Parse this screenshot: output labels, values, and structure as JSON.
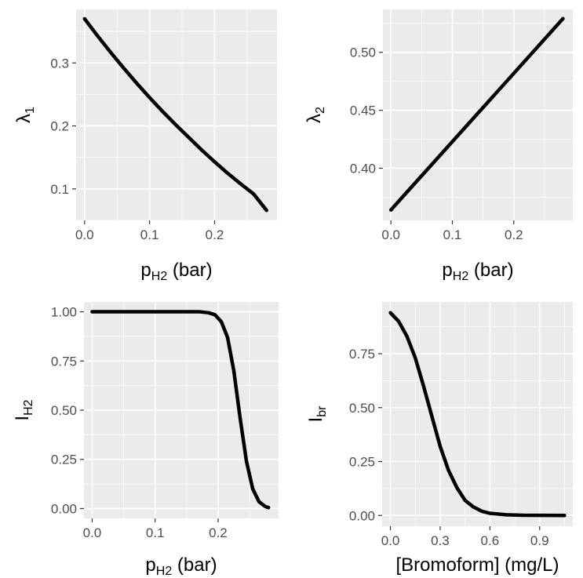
{
  "chart_data": [
    {
      "type": "line",
      "id": "lambda1",
      "xlabel": {
        "main": "p",
        "sub": "H2",
        "tail": " (bar)"
      },
      "ylabel": {
        "main": "λ",
        "sub": "1"
      },
      "xlim": [
        -0.013,
        0.296
      ],
      "ylim": [
        0.05,
        0.385
      ],
      "xticks": [
        {
          "v": 0.0,
          "label": "0.0"
        },
        {
          "v": 0.1,
          "label": "0.1"
        },
        {
          "v": 0.2,
          "label": "0.2"
        }
      ],
      "yticks": [
        {
          "v": 0.1,
          "label": "0.1"
        },
        {
          "v": 0.2,
          "label": "0.2"
        },
        {
          "v": 0.3,
          "label": "0.3"
        }
      ],
      "x": [
        0.0,
        0.02,
        0.04,
        0.06,
        0.08,
        0.1,
        0.12,
        0.14,
        0.16,
        0.18,
        0.2,
        0.22,
        0.24,
        0.26,
        0.28
      ],
      "y": [
        0.37,
        0.343,
        0.317,
        0.292,
        0.268,
        0.245,
        0.223,
        0.202,
        0.182,
        0.162,
        0.143,
        0.125,
        0.108,
        0.092,
        0.066
      ]
    },
    {
      "type": "line",
      "id": "lambda2",
      "xlabel": {
        "main": "p",
        "sub": "H2",
        "tail": " (bar)"
      },
      "ylabel": {
        "main": "λ",
        "sub": "2"
      },
      "xlim": [
        -0.013,
        0.296
      ],
      "ylim": [
        0.355,
        0.537
      ],
      "xticks": [
        {
          "v": 0.0,
          "label": "0.0"
        },
        {
          "v": 0.1,
          "label": "0.1"
        },
        {
          "v": 0.2,
          "label": "0.2"
        }
      ],
      "yticks": [
        {
          "v": 0.4,
          "label": "0.40"
        },
        {
          "v": 0.45,
          "label": "0.45"
        },
        {
          "v": 0.5,
          "label": "0.50"
        }
      ],
      "x": [
        0.0,
        0.28
      ],
      "y": [
        0.364,
        0.529
      ]
    },
    {
      "type": "line",
      "id": "IH2",
      "xlabel": {
        "main": "p",
        "sub": "H2",
        "tail": " (bar)"
      },
      "ylabel": {
        "main": "I",
        "sub": "H2"
      },
      "xlim": [
        -0.013,
        0.296
      ],
      "ylim": [
        -0.05,
        1.05
      ],
      "xticks": [
        {
          "v": 0.0,
          "label": "0.0"
        },
        {
          "v": 0.1,
          "label": "0.1"
        },
        {
          "v": 0.2,
          "label": "0.2"
        }
      ],
      "yticks": [
        {
          "v": 0.0,
          "label": "0.00"
        },
        {
          "v": 0.25,
          "label": "0.25"
        },
        {
          "v": 0.5,
          "label": "0.50"
        },
        {
          "v": 0.75,
          "label": "0.75"
        },
        {
          "v": 1.0,
          "label": "1.00"
        }
      ],
      "x": [
        0.0,
        0.1,
        0.17,
        0.185,
        0.195,
        0.205,
        0.215,
        0.225,
        0.235,
        0.245,
        0.255,
        0.265,
        0.275,
        0.28
      ],
      "y": [
        1.0,
        1.0,
        1.0,
        0.995,
        0.985,
        0.95,
        0.87,
        0.7,
        0.46,
        0.24,
        0.1,
        0.035,
        0.01,
        0.005
      ]
    },
    {
      "type": "line",
      "id": "Ibr",
      "xlabel": {
        "main": "[Bromoform] (mg/L)",
        "sub": "",
        "tail": ""
      },
      "ylabel": {
        "main": "I",
        "sub": "br"
      },
      "xlim": [
        -0.05,
        1.1
      ],
      "ylim": [
        -0.05,
        0.99
      ],
      "xticks": [
        {
          "v": 0.0,
          "label": "0.0"
        },
        {
          "v": 0.3,
          "label": "0.3"
        },
        {
          "v": 0.6,
          "label": "0.6"
        },
        {
          "v": 0.9,
          "label": "0.9"
        }
      ],
      "yticks": [
        {
          "v": 0.0,
          "label": "0.00"
        },
        {
          "v": 0.25,
          "label": "0.25"
        },
        {
          "v": 0.5,
          "label": "0.50"
        },
        {
          "v": 0.75,
          "label": "0.75"
        }
      ],
      "x": [
        0.0,
        0.05,
        0.1,
        0.15,
        0.2,
        0.25,
        0.3,
        0.35,
        0.4,
        0.45,
        0.5,
        0.55,
        0.6,
        0.7,
        0.8,
        1.05
      ],
      "y": [
        0.94,
        0.9,
        0.83,
        0.73,
        0.6,
        0.46,
        0.32,
        0.21,
        0.13,
        0.07,
        0.04,
        0.02,
        0.01,
        0.003,
        0.001,
        0.0
      ]
    }
  ]
}
